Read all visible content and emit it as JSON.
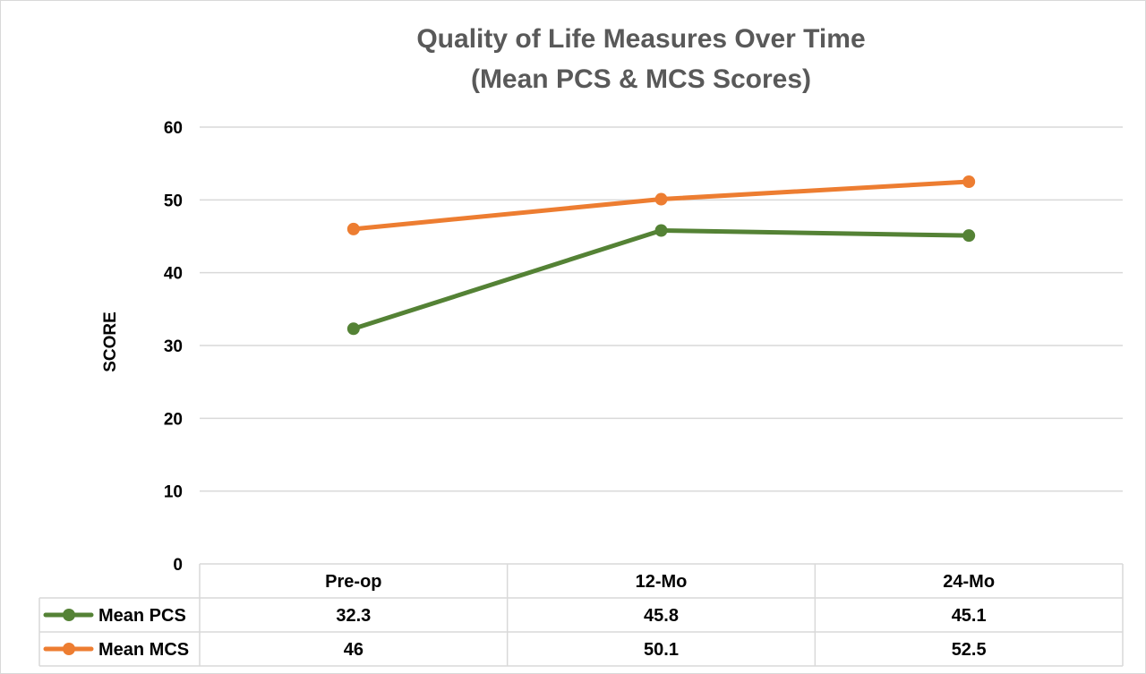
{
  "chart_data": {
    "type": "line",
    "title": [
      "Quality of Life Measures Over Time",
      "(Mean PCS & MCS Scores)"
    ],
    "xlabel": "",
    "ylabel": "SCORE",
    "categories": [
      "Pre-op",
      "12-Mo",
      "24-Mo"
    ],
    "ylim": [
      0,
      60
    ],
    "yticks": [
      0,
      10,
      20,
      30,
      40,
      50,
      60
    ],
    "grid": true,
    "legend_placement": "data table below plot",
    "series": [
      {
        "name": "Mean PCS",
        "values": [
          32.3,
          45.8,
          45.1
        ],
        "color": "#548235"
      },
      {
        "name": "Mean MCS",
        "values": [
          46,
          50.1,
          52.5
        ],
        "color": "#ed7d31"
      }
    ],
    "data_table": {
      "rows": [
        {
          "label": "Mean PCS",
          "cells": [
            "32.3",
            "45.8",
            "45.1"
          ]
        },
        {
          "label": "Mean MCS",
          "cells": [
            "46",
            "50.1",
            "52.5"
          ]
        }
      ]
    }
  }
}
